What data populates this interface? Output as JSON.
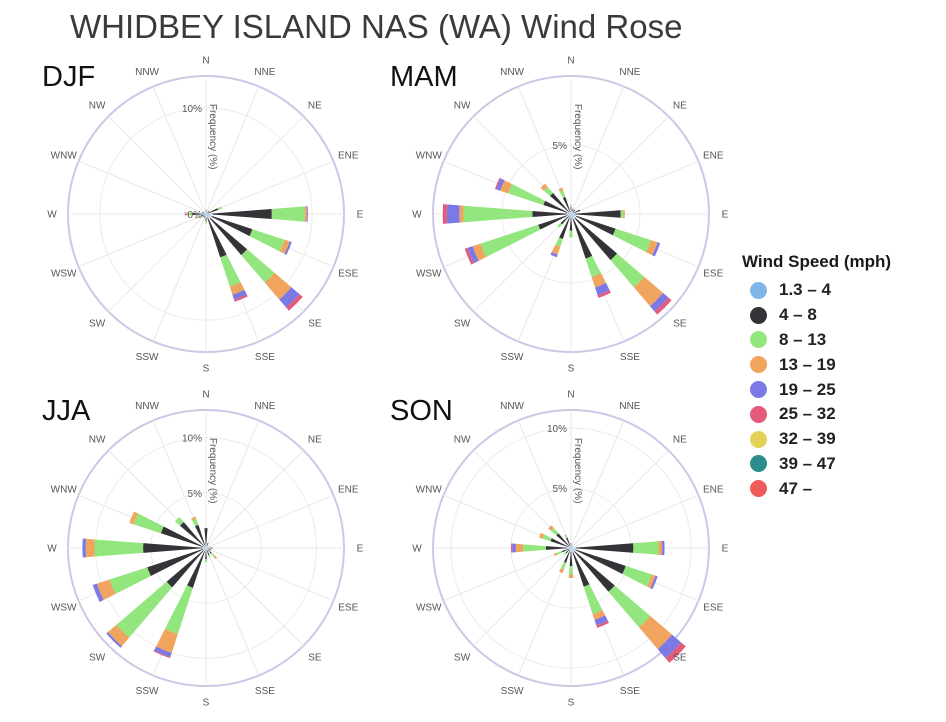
{
  "title": "WHIDBEY ISLAND NAS (WA) Wind Rose",
  "directions": [
    "N",
    "NNE",
    "NE",
    "ENE",
    "E",
    "ESE",
    "SE",
    "SSE",
    "S",
    "SSW",
    "SW",
    "WSW",
    "W",
    "WNW",
    "NW",
    "NNW"
  ],
  "legend": {
    "title": "Wind Speed (mph)",
    "bins": [
      {
        "label": "1.3 – 4",
        "color": "#7eb6ea"
      },
      {
        "label": "4 – 8",
        "color": "#333338"
      },
      {
        "label": "8 – 13",
        "color": "#93e57e"
      },
      {
        "label": "13 – 19",
        "color": "#f1a45e"
      },
      {
        "label": "19 – 25",
        "color": "#7b79e6"
      },
      {
        "label": "25 – 32",
        "color": "#e45a7a"
      },
      {
        "label": "32 – 39",
        "color": "#e6d158"
      },
      {
        "label": "39 – 47",
        "color": "#2d8d8d"
      },
      {
        "label": "47 –",
        "color": "#f05b5b"
      }
    ]
  },
  "chart_data": [
    {
      "type": "wind-rose",
      "season": "DJF",
      "radial_axis_title": "Frequency (%)",
      "radial_range": [
        0,
        13
      ],
      "radial_ticks": [
        {
          "value": 0,
          "label": "0%"
        },
        {
          "value": 10,
          "label": "10%"
        }
      ],
      "sectors": {
        "E": [
          0.6,
          5.6,
          3.1,
          0.2,
          0.1
        ],
        "ESE": [
          0.6,
          4.0,
          3.2,
          0.5,
          0.2
        ],
        "SE": [
          0.5,
          4.6,
          3.4,
          2.1,
          1.0,
          0.4
        ],
        "SSE": [
          0.4,
          3.9,
          2.9,
          0.8,
          0.5,
          0.2
        ],
        "S": [
          0.3,
          0.4,
          0.2
        ],
        "SSW": [
          0.2,
          0.2
        ],
        "SW": [
          0.2,
          0.2
        ],
        "WSW": [
          0.2,
          0.3,
          0.3,
          0.2
        ],
        "W": [
          0.2,
          1.1,
          0.4,
          0.2,
          0.1
        ],
        "WNW": [
          0.2,
          0.2
        ],
        "NW": [
          0.2
        ],
        "NNW": [
          0.2
        ],
        "N": [
          0.2,
          0.2
        ],
        "NNE": [
          0.2
        ],
        "NE": [
          0.2,
          0.2
        ],
        "ENE": [
          0.2,
          1.0,
          0.4
        ]
      }
    },
    {
      "type": "wind-rose",
      "season": "MAM",
      "radial_axis_title": "Frequency (%)",
      "radial_range": [
        0,
        10
      ],
      "radial_ticks": [
        {
          "value": 5,
          "label": "5%"
        }
      ],
      "sectors": {
        "N": [
          0.2,
          0.3,
          0.2
        ],
        "NNE": [
          0.2,
          0.2
        ],
        "NE": [
          0.2,
          0.2
        ],
        "ENE": [
          0.2,
          0.5
        ],
        "E": [
          0.3,
          3.3,
          0.2,
          0.1
        ],
        "ESE": [
          0.4,
          3.0,
          2.7,
          0.5,
          0.2
        ],
        "SE": [
          0.4,
          4.0,
          2.6,
          1.8,
          0.5,
          0.3
        ],
        "SSE": [
          0.4,
          3.0,
          1.4,
          0.8,
          0.6,
          0.2
        ],
        "S": [
          0.2,
          1.0,
          0.5
        ],
        "SSW": [
          0.3,
          1.6,
          0.6,
          0.6,
          0.2
        ],
        "SW": [
          0.2,
          0.8,
          0.3
        ],
        "WSW": [
          0.3,
          2.2,
          4.4,
          0.6,
          0.4,
          0.2
        ],
        "W": [
          0.3,
          2.5,
          5.0,
          0.3,
          0.9,
          0.3
        ],
        "WNW": [
          0.3,
          1.8,
          2.7,
          0.6,
          0.3,
          0.1
        ],
        "NW": [
          0.2,
          1.8,
          0.6,
          0.3
        ],
        "NNW": [
          0.2,
          1.1,
          0.5,
          0.2
        ]
      }
    },
    {
      "type": "wind-rose",
      "season": "JJA",
      "radial_axis_title": "Frequency (%)",
      "radial_range": [
        0,
        12.5
      ],
      "radial_ticks": [
        {
          "value": 5,
          "label": "5%"
        },
        {
          "value": 10,
          "label": "10%"
        }
      ],
      "sectors": {
        "N": [
          0.3,
          1.5
        ],
        "NNE": [
          0.2,
          0.3
        ],
        "NE": [
          0.2
        ],
        "ENE": [
          0.2
        ],
        "E": [
          0.2,
          0.4
        ],
        "ESE": [
          0.2,
          0.3
        ],
        "SE": [
          0.2,
          0.5,
          0.4,
          0.2
        ],
        "SSE": [
          0.2,
          0.5,
          0.2
        ],
        "S": [
          0.2,
          0.8,
          0.3
        ],
        "SSW": [
          0.3,
          3.5,
          4.4,
          1.8,
          0.4,
          0.1
        ],
        "SW": [
          0.3,
          4.4,
          6.0,
          1.0,
          0.2
        ],
        "WSW": [
          0.3,
          5.3,
          3.6,
          1.2,
          0.4
        ],
        "W": [
          0.3,
          5.4,
          4.4,
          0.8,
          0.3
        ],
        "WNW": [
          0.3,
          4.0,
          2.6,
          0.4
        ],
        "NW": [
          0.2,
          2.9,
          0.6
        ],
        "NNW": [
          0.2,
          2.0,
          0.6,
          0.2
        ]
      }
    },
    {
      "type": "wind-rose",
      "season": "SON",
      "radial_axis_title": "Frequency (%)",
      "radial_range": [
        0,
        11.5
      ],
      "radial_ticks": [
        {
          "value": 5,
          "label": "5%"
        },
        {
          "value": 10,
          "label": "10%"
        }
      ],
      "sectors": {
        "N": [
          0.2,
          0.2
        ],
        "NNE": [
          0.2
        ],
        "NE": [
          0.2
        ],
        "ENE": [
          0.2
        ],
        "E": [
          0.4,
          4.8,
          2.1,
          0.3,
          0.2
        ],
        "ESE": [
          0.4,
          4.4,
          2.3,
          0.3,
          0.2
        ],
        "SE": [
          0.4,
          4.4,
          3.9,
          2.4,
          1.0,
          0.5
        ],
        "SSE": [
          0.4,
          3.0,
          2.4,
          0.5,
          0.5,
          0.2
        ],
        "S": [
          0.3,
          1.2,
          0.7,
          0.3
        ],
        "SSW": [
          0.3,
          1.0,
          0.6,
          0.3
        ],
        "SW": [
          0.2,
          0.4,
          0.2
        ],
        "WSW": [
          0.2,
          0.6,
          0.5,
          0.2
        ],
        "W": [
          0.3,
          1.8,
          1.9,
          0.6,
          0.3,
          0.1
        ],
        "WNW": [
          0.3,
          1.5,
          0.7,
          0.3
        ],
        "NW": [
          0.2,
          1.4,
          0.6,
          0.3
        ],
        "NNW": [
          0.2,
          0.7,
          0.3
        ]
      }
    }
  ]
}
